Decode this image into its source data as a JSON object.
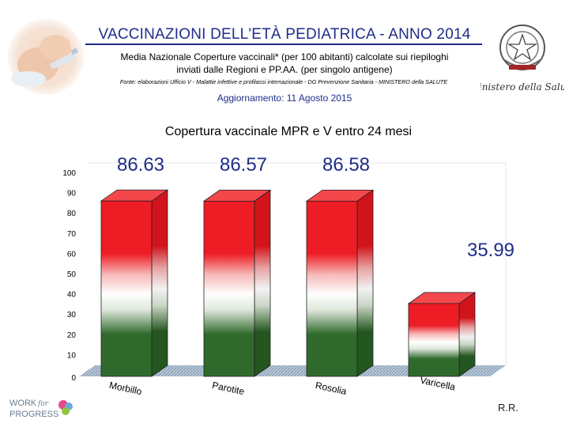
{
  "header": {
    "title": "VACCINAZIONI DELL'ETÀ PEDIATRICA - ANNO 2014",
    "subtitle_line1": "Media Nazionale Coperture vaccinali* (per 100 abitanti) calcolate sui riepiloghi",
    "subtitle_line2": "inviati dalle Regioni e PP.AA. (per singolo antigene)",
    "source": "Fonte: elaborazioni Ufficio V - Malattie infettive e profilassi internazionale - DG Prevenzione Sanitaria - MINISTERO della SALUTE",
    "update": "Aggiornamento: 11 Agosto 2015"
  },
  "logos": {
    "ministry_text": "Ministero della Salute",
    "work_logo_word1": "WORK",
    "work_logo_word2": "for",
    "work_logo_word3": "PROGRESS",
    "credit": "R.R."
  },
  "colors": {
    "title_blue": "#1f2d8a",
    "bar_red": "#ee1c24",
    "bar_white": "#ffffff",
    "bar_green": "#2f6a2c",
    "floor": "#9fb3c8"
  },
  "chart_data": {
    "type": "bar",
    "title": "Copertura vaccinale MPR e V entro 24 mesi",
    "categories": [
      "Morbillo",
      "Parotite",
      "Rosolia",
      "Varicella"
    ],
    "values": [
      86.63,
      86.57,
      86.58,
      35.99
    ],
    "value_labels": [
      "86.63",
      "86.57",
      "86.58",
      "35.99"
    ],
    "ylim": [
      0,
      100
    ],
    "yticks": [
      0,
      10,
      20,
      30,
      40,
      50,
      60,
      70,
      80,
      90,
      100
    ],
    "grid": false,
    "legend": "none"
  }
}
